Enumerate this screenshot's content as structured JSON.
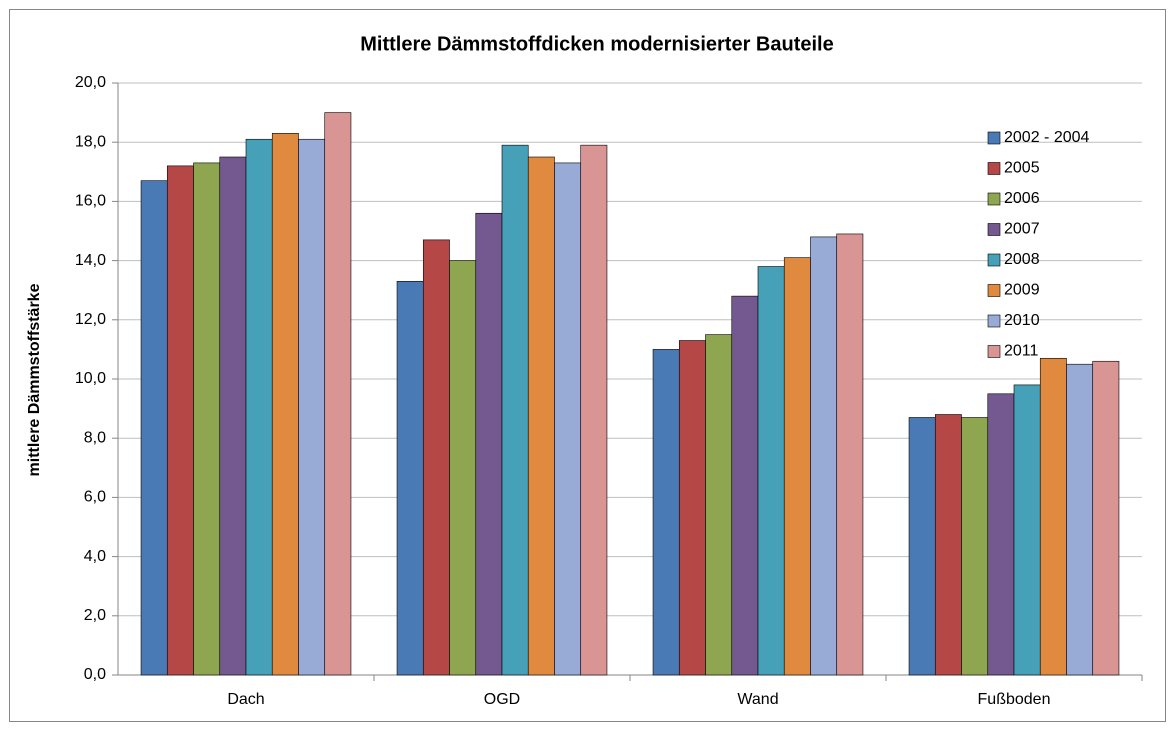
{
  "chart_data": {
    "type": "bar",
    "title": "Mittlere Dämmstoffdicken modernisierter Bauteile",
    "y_label": "mittlere Dämmstoffstärke",
    "categories": [
      "Dach",
      "OGD",
      "Wand",
      "Fußboden"
    ],
    "series": [
      {
        "name": "2002 - 2004",
        "color": "#4a7ab5",
        "values": [
          16.7,
          13.3,
          11.0,
          8.7
        ]
      },
      {
        "name": "2005",
        "color": "#b54747",
        "values": [
          17.2,
          14.7,
          11.3,
          8.8
        ]
      },
      {
        "name": "2006",
        "color": "#8ea64f",
        "values": [
          17.3,
          14.0,
          11.5,
          8.7
        ]
      },
      {
        "name": "2007",
        "color": "#73598f",
        "values": [
          17.5,
          15.6,
          12.8,
          9.5
        ]
      },
      {
        "name": "2008",
        "color": "#45a0b8",
        "values": [
          18.1,
          17.9,
          13.8,
          9.8
        ]
      },
      {
        "name": "2009",
        "color": "#e08a3f",
        "values": [
          18.3,
          17.5,
          14.1,
          10.7
        ]
      },
      {
        "name": "2010",
        "color": "#97abd6",
        "values": [
          18.1,
          17.3,
          14.8,
          10.5
        ]
      },
      {
        "name": "2011",
        "color": "#d99494",
        "values": [
          19.0,
          17.9,
          14.9,
          10.6
        ]
      }
    ],
    "ylim": [
      0,
      20
    ],
    "yticks": [
      {
        "value": 0,
        "label": "0,0"
      },
      {
        "value": 2,
        "label": "2,0"
      },
      {
        "value": 4,
        "label": "4,0"
      },
      {
        "value": 6,
        "label": "6,0"
      },
      {
        "value": 8,
        "label": "8,0"
      },
      {
        "value": 10,
        "label": "10,0"
      },
      {
        "value": 12,
        "label": "12,0"
      },
      {
        "value": 14,
        "label": "14,0"
      },
      {
        "value": 16,
        "label": "16,0"
      },
      {
        "value": 18,
        "label": "18,0"
      },
      {
        "value": 20,
        "label": "20,0"
      }
    ],
    "grid": true,
    "legend": "top-right"
  }
}
